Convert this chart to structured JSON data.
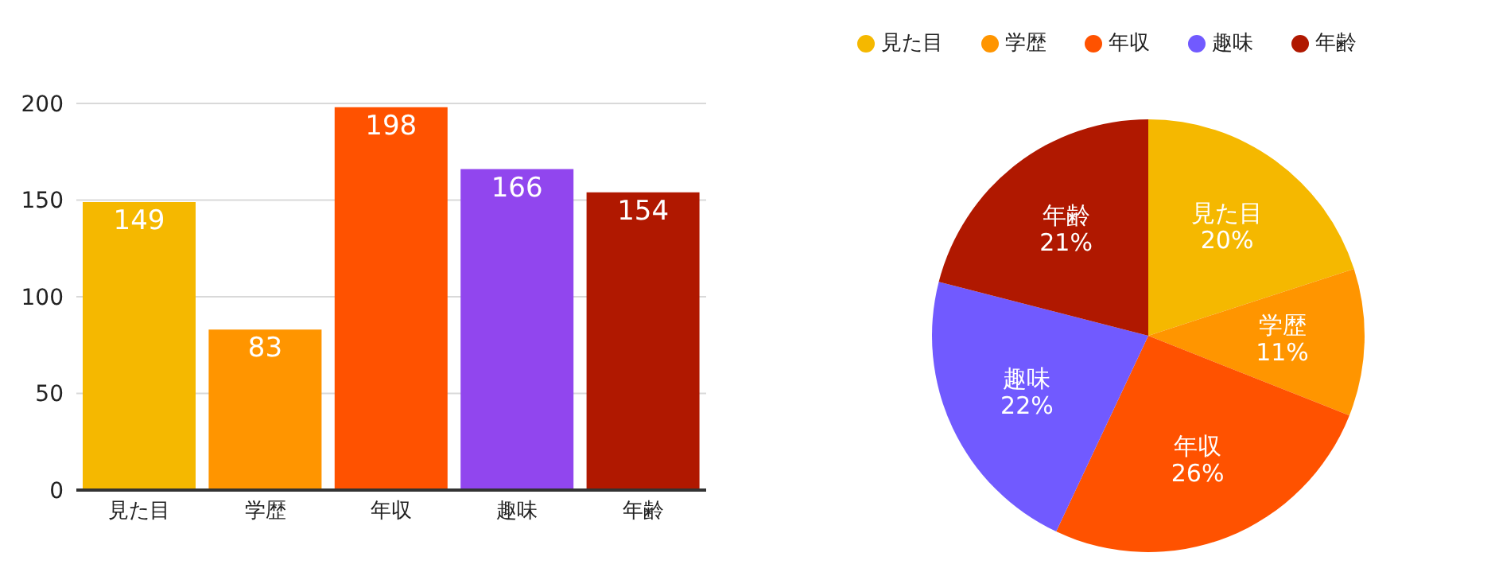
{
  "chart_data": [
    {
      "type": "bar",
      "categories": [
        "見た目",
        "学歴",
        "年収",
        "趣味",
        "年齢"
      ],
      "values": [
        149,
        83,
        198,
        166,
        154
      ],
      "colors": [
        "#f5b800",
        "#ff9500",
        "#ff5200",
        "#9146ee",
        "#b01800"
      ],
      "ylim": [
        0,
        200
      ],
      "yticks": [
        0,
        50,
        100,
        150,
        200
      ],
      "grid": "y",
      "data_labels": true
    },
    {
      "type": "pie",
      "categories": [
        "見た目",
        "学歴",
        "年収",
        "趣味",
        "年齢"
      ],
      "values": [
        20,
        11,
        26,
        22,
        21
      ],
      "value_labels": [
        "20%",
        "11%",
        "26%",
        "22%",
        "21%"
      ],
      "colors": [
        "#f5b800",
        "#ff9500",
        "#ff5200",
        "#715aff",
        "#b01800"
      ],
      "legend": "top"
    }
  ]
}
